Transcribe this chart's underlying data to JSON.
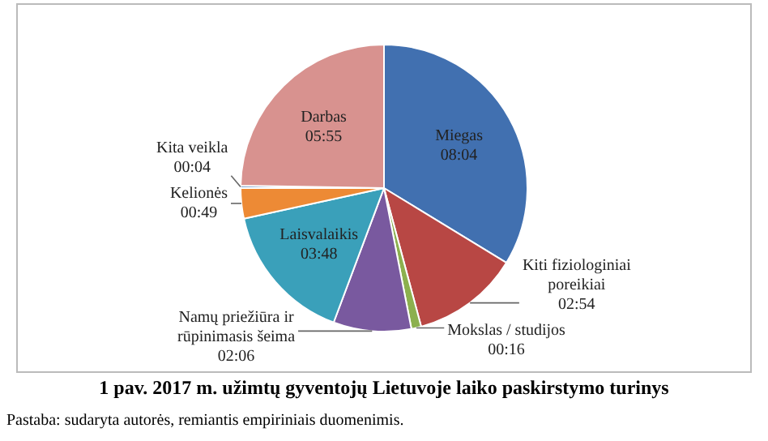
{
  "chart_data": {
    "type": "pie",
    "title": "1 pav. 2017 m. užimtų gyventojų Lietuvoje laiko paskirstymo turinys",
    "categories": [
      "Miegas",
      "Kiti fiziologiniai poreikiai",
      "Mokslas / studijos",
      "Namų priežiūra ir rūpinimasis šeima",
      "Laisvalaikis",
      "Kelionės",
      "Kita veikla",
      "Darbas"
    ],
    "values": [
      484,
      174,
      16,
      126,
      228,
      49,
      4,
      355
    ],
    "value_labels": [
      "08:04",
      "02:54",
      "00:16",
      "02:06",
      "03:48",
      "00:49",
      "00:04",
      "05:55"
    ],
    "colors": [
      "#4170b0",
      "#b84744",
      "#8cb04e",
      "#79599f",
      "#3aa0ba",
      "#ed8a35",
      "#4a7ebb",
      "#d8928f"
    ],
    "annotations": [
      "Pastaba: sudaryta autorės, remiantis empiriniais duomenimis."
    ]
  }
}
